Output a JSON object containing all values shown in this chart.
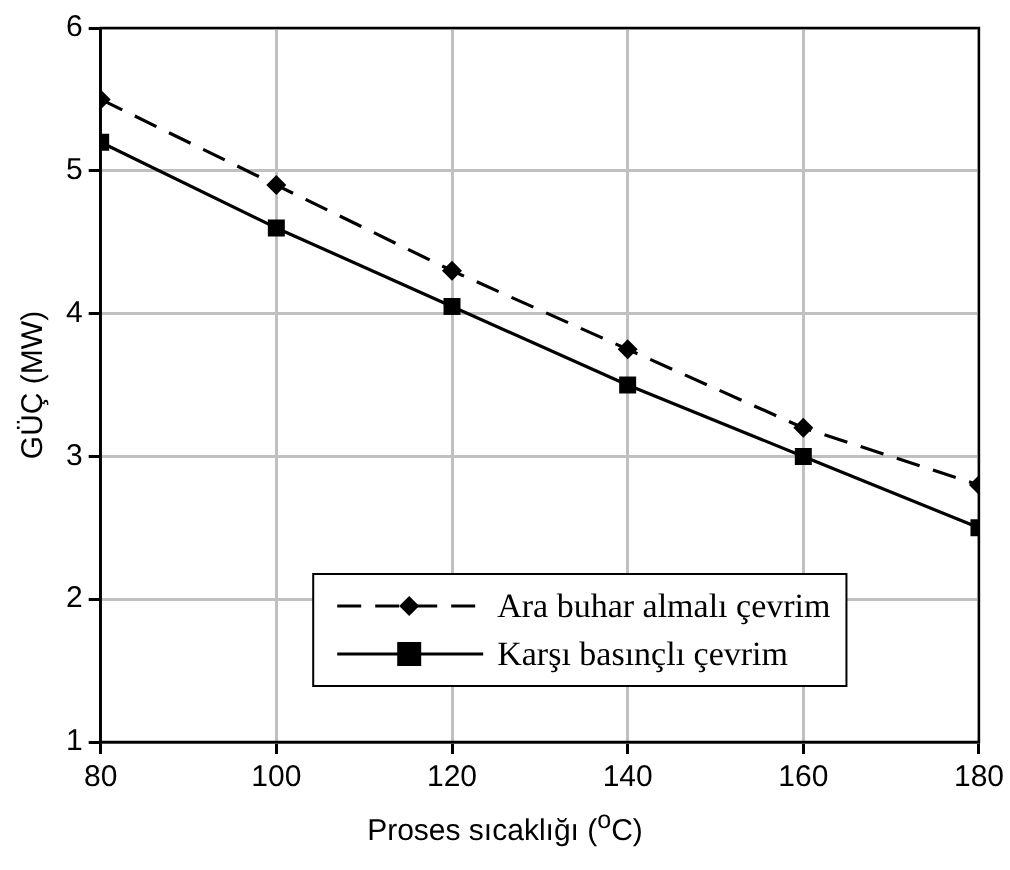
{
  "chart_data": {
    "type": "line",
    "xlabel": "Proses sıcaklığı ($^{o}$C)",
    "ylabel": "GÜÇ (MW)",
    "x": [
      80,
      100,
      120,
      140,
      160,
      180
    ],
    "series": [
      {
        "name": "Ara buhar almalı çevrim",
        "color": "#000000",
        "values": [
          5.5,
          4.9,
          4.3,
          3.75,
          3.2,
          2.8
        ],
        "marker": "diamond",
        "line_style": "dashed"
      },
      {
        "name": "Karşı basınçlı çevrim",
        "color": "#000000",
        "values": [
          5.2,
          4.6,
          4.05,
          3.5,
          3.0,
          2.5
        ],
        "marker": "square",
        "line_style": "solid"
      }
    ],
    "xlim": [
      80,
      180
    ],
    "xticks": [
      80,
      100,
      120,
      140,
      160,
      180
    ],
    "ylim": [
      1,
      6
    ],
    "yticks": [
      1,
      2,
      3,
      4,
      5,
      6
    ],
    "grid": true,
    "legend": "bottom"
  }
}
